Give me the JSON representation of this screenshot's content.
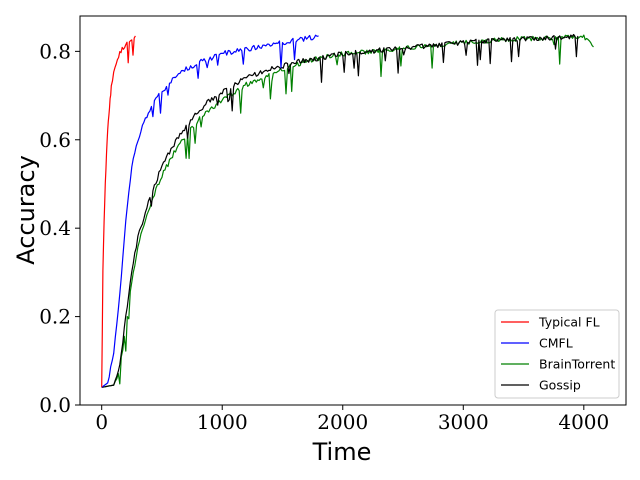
{
  "chart_data": {
    "type": "line",
    "title": "",
    "xlabel": "Time",
    "ylabel": "Accuracy",
    "xlim": [
      -180,
      4350
    ],
    "ylim": [
      0.0,
      0.88
    ],
    "xticks": [
      0,
      1000,
      2000,
      3000,
      4000
    ],
    "yticks": [
      0.0,
      0.2,
      0.4,
      0.6,
      0.8
    ],
    "xtick_labels": [
      "0",
      "1000",
      "2000",
      "3000",
      "4000"
    ],
    "ytick_labels": [
      "0.0",
      "0.2",
      "0.4",
      "0.6",
      "0.8"
    ],
    "grid": false,
    "legend_position": "lower-right",
    "series": [
      {
        "name": "Typical FL",
        "color": "#ff0000",
        "x": [
          0,
          10,
          20,
          30,
          40,
          50,
          60,
          70,
          80,
          100,
          120,
          140,
          160,
          180,
          200,
          220,
          240,
          260,
          280
        ],
        "y": [
          0.04,
          0.3,
          0.42,
          0.5,
          0.57,
          0.62,
          0.66,
          0.69,
          0.72,
          0.75,
          0.77,
          0.79,
          0.8,
          0.81,
          0.815,
          0.82,
          0.825,
          0.83,
          0.835
        ]
      },
      {
        "name": "CMFL",
        "color": "#0000ff",
        "x": [
          0,
          50,
          100,
          150,
          200,
          250,
          300,
          350,
          400,
          500,
          600,
          700,
          800,
          900,
          1000,
          1100,
          1200,
          1300,
          1400,
          1500,
          1600,
          1700,
          1800
        ],
        "y": [
          0.04,
          0.05,
          0.12,
          0.25,
          0.42,
          0.54,
          0.6,
          0.64,
          0.67,
          0.71,
          0.74,
          0.76,
          0.775,
          0.785,
          0.795,
          0.8,
          0.805,
          0.81,
          0.815,
          0.82,
          0.825,
          0.83,
          0.835
        ]
      },
      {
        "name": "BrainTorrent",
        "color": "#008000",
        "x": [
          0,
          100,
          150,
          200,
          250,
          300,
          400,
          500,
          600,
          700,
          800,
          900,
          1000,
          1200,
          1400,
          1600,
          1800,
          2000,
          2200,
          2400,
          2600,
          2800,
          3000,
          3200,
          3400,
          3600,
          3800,
          4000,
          4080
        ],
        "y": [
          0.04,
          0.045,
          0.08,
          0.18,
          0.28,
          0.36,
          0.45,
          0.52,
          0.57,
          0.61,
          0.645,
          0.67,
          0.69,
          0.725,
          0.75,
          0.77,
          0.785,
          0.795,
          0.8,
          0.805,
          0.81,
          0.815,
          0.82,
          0.825,
          0.828,
          0.83,
          0.832,
          0.835,
          0.81
        ]
      },
      {
        "name": "Gossip",
        "color": "#000000",
        "x": [
          0,
          100,
          150,
          200,
          250,
          300,
          400,
          500,
          600,
          700,
          800,
          900,
          1000,
          1200,
          1400,
          1600,
          1800,
          2000,
          2200,
          2400,
          2600,
          2800,
          3000,
          3200,
          3400,
          3600,
          3800,
          3950
        ],
        "y": [
          0.04,
          0.045,
          0.09,
          0.2,
          0.3,
          0.38,
          0.47,
          0.54,
          0.59,
          0.63,
          0.665,
          0.69,
          0.71,
          0.74,
          0.76,
          0.775,
          0.785,
          0.795,
          0.8,
          0.805,
          0.81,
          0.815,
          0.82,
          0.825,
          0.828,
          0.83,
          0.832,
          0.835
        ]
      }
    ]
  }
}
